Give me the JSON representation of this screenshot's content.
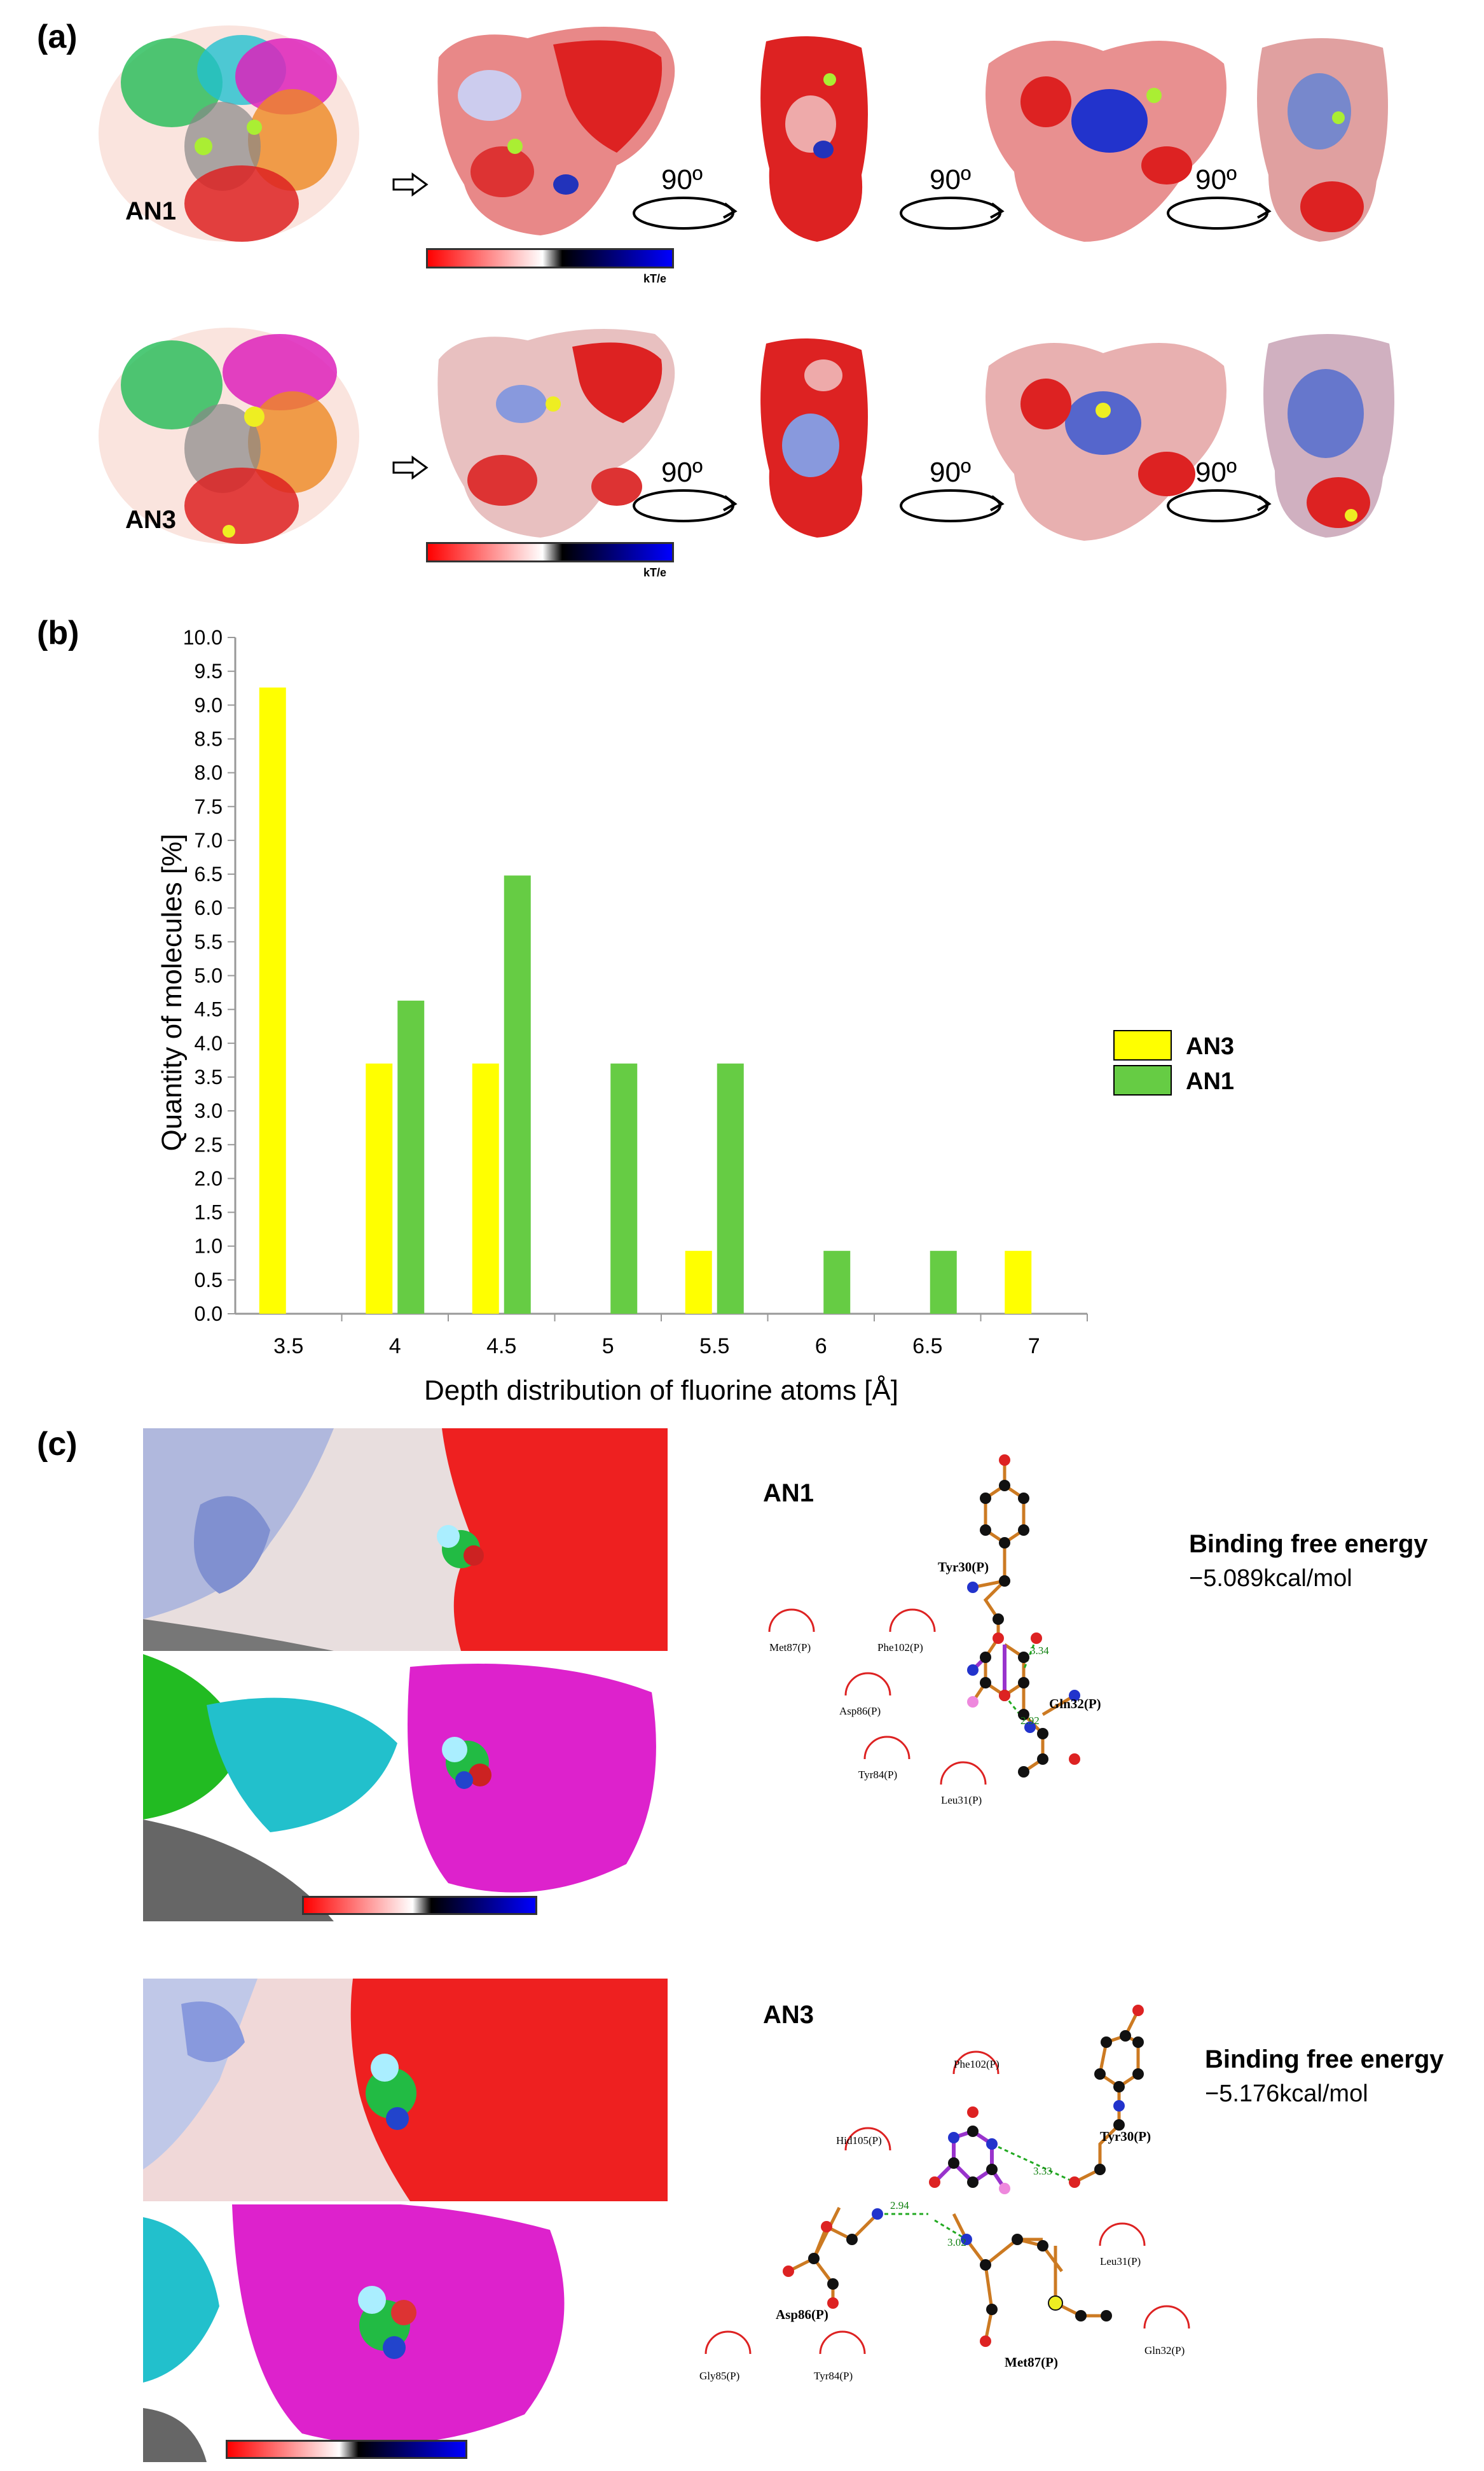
{
  "figure": {
    "panels": {
      "a": {
        "label": "(a)"
      },
      "b": {
        "label": "(b)"
      },
      "c": {
        "label": "(c)"
      }
    },
    "panel_a": {
      "rows": [
        {
          "name": "AN1",
          "rotations": [
            "90º",
            "90º",
            "90º"
          ],
          "scale_unit": "kT/e"
        },
        {
          "name": "AN3",
          "rotations": [
            "90º",
            "90º",
            "90º"
          ],
          "scale_unit": "kT/e"
        }
      ]
    },
    "panel_c": {
      "blocks": [
        {
          "name": "AN1",
          "energy_title": "Binding free energy",
          "energy_value": "−5.089kcal/mol",
          "residues": {
            "green": [
              "Tyr30(P)",
              "Gln32(P)"
            ],
            "black": [
              "Met87(P)",
              "Phe102(P)",
              "Asp86(P)",
              "Tyr84(P)",
              "Leu31(P)"
            ],
            "distances": [
              "3.34",
              "2.92"
            ]
          }
        },
        {
          "name": "AN3",
          "energy_title": "Binding free energy",
          "energy_value": "−5.176kcal/mol",
          "residues": {
            "green": [
              "Tyr30(P)",
              "Asp86(P)",
              "Met87(P)"
            ],
            "black": [
              "Phe102(P)",
              "Hid105(P)",
              "Leu31(P)",
              "Gly85(P)",
              "Tyr84(P)",
              "Gln32(P)"
            ],
            "distances": [
              "3.33",
              "2.94",
              "3.02"
            ]
          }
        }
      ]
    }
  },
  "chart_data": {
    "type": "bar",
    "title": "",
    "xlabel": "Depth distribution of fluorine atoms [Å]",
    "ylabel": "Quantity of molecules [%]",
    "ylim": [
      0,
      10
    ],
    "yticks": [
      "0.0",
      "0.5",
      "1.0",
      "1.5",
      "2.0",
      "2.5",
      "3.0",
      "3.5",
      "4.0",
      "4.5",
      "5.0",
      "5.5",
      "6.0",
      "6.5",
      "7.0",
      "7.5",
      "8.0",
      "8.5",
      "9.0",
      "9.5",
      "10.0"
    ],
    "categories": [
      "3.5",
      "4",
      "4.5",
      "5",
      "5.5",
      "6",
      "6.5",
      "7"
    ],
    "series": [
      {
        "name": "AN3",
        "color": "#ffff00",
        "values": [
          9.26,
          3.7,
          3.7,
          0,
          0.93,
          0,
          0,
          0.93
        ]
      },
      {
        "name": "AN1",
        "color": "#66cc44",
        "values": [
          0,
          4.63,
          6.48,
          3.7,
          3.7,
          0.93,
          0.93,
          0
        ]
      }
    ],
    "grid": false,
    "legend": "right"
  }
}
